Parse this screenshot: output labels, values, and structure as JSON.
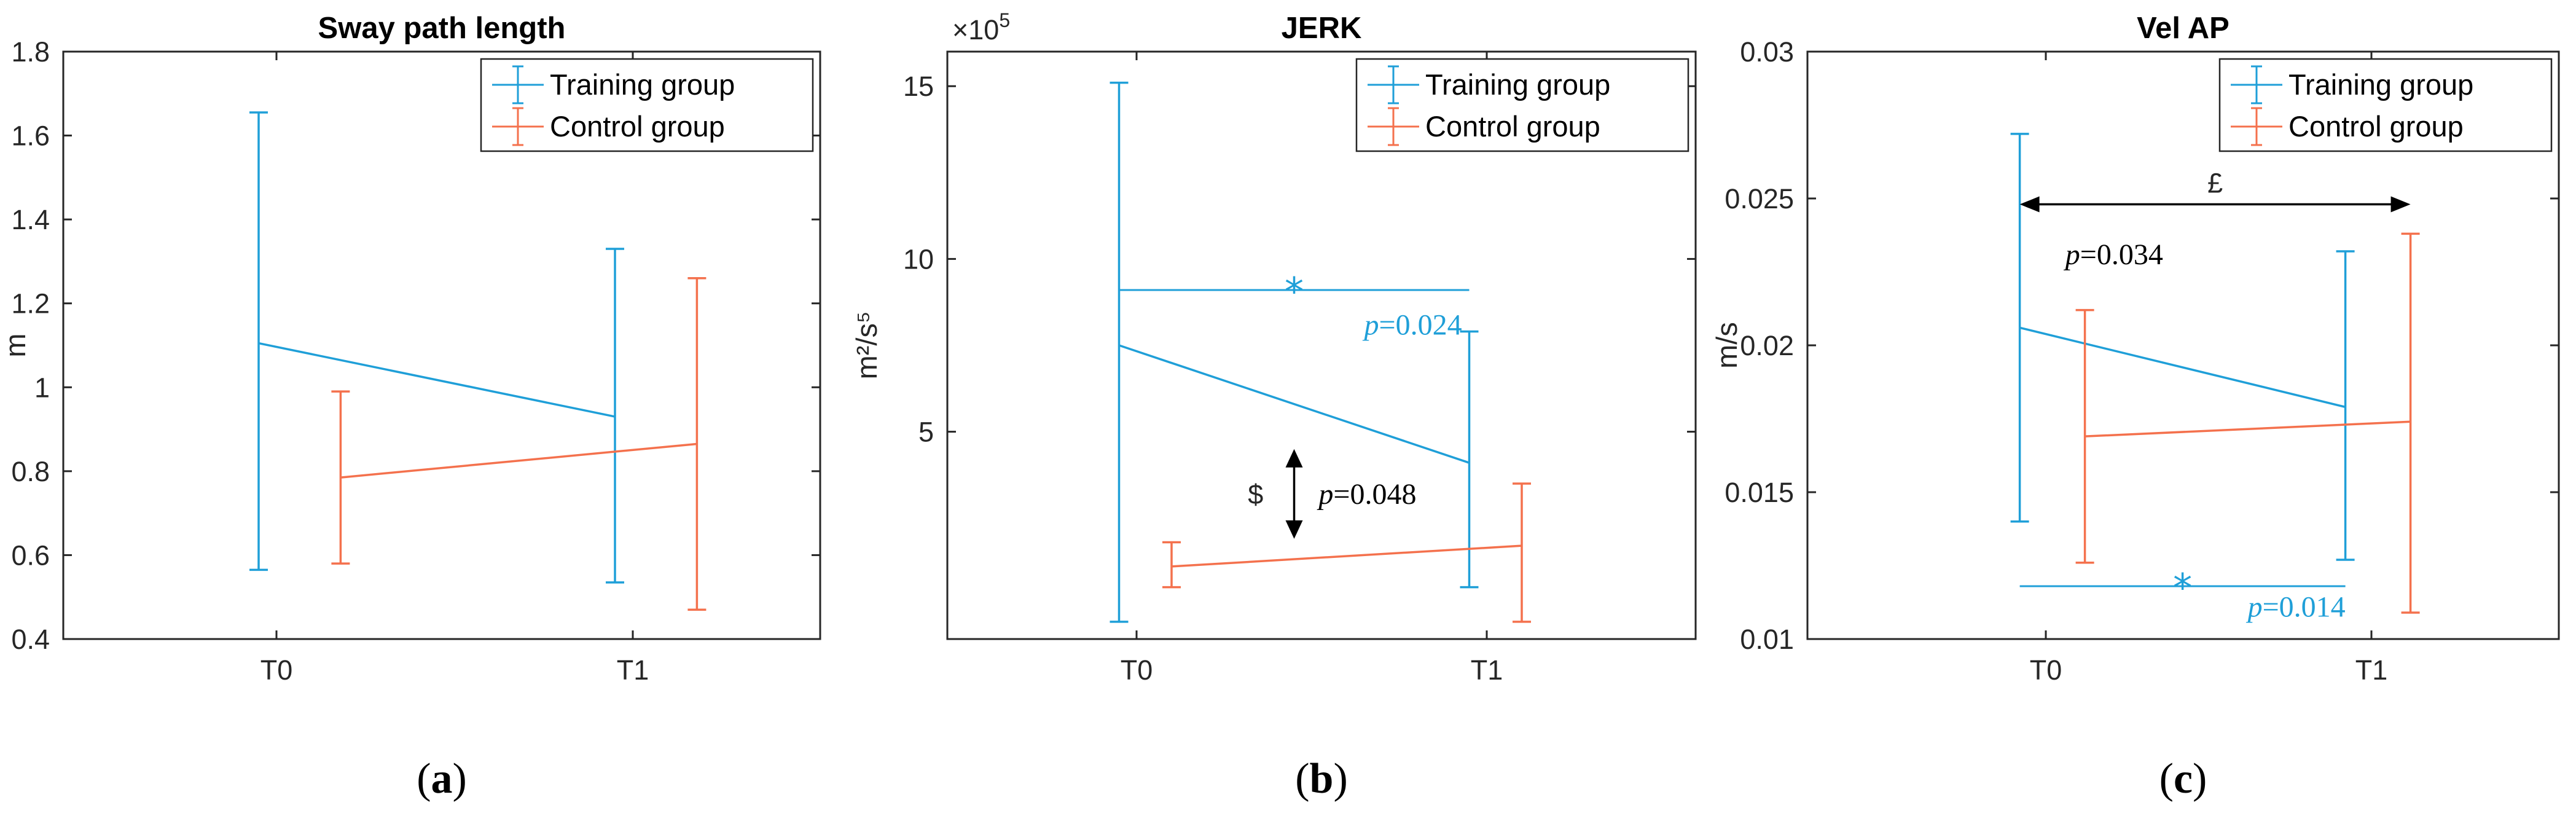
{
  "colors": {
    "training": "#1f9fd8",
    "control": "#f4714d",
    "axis": "#262626",
    "annotation": "#000000"
  },
  "chart_data": [
    {
      "type": "line",
      "title": "Sway path length",
      "ylabel": "m",
      "ylabel_html": "m",
      "caption": "(a)",
      "caption_letter": "a",
      "ylim": [
        0.4,
        1.8
      ],
      "yticks": [
        0.4,
        0.6,
        0.8,
        1,
        1.2,
        1.4,
        1.6,
        1.8
      ],
      "ytick_labels": [
        "0.4",
        "0.6",
        "0.8",
        "1",
        "1.2",
        "1.4",
        "1.6",
        "1.8"
      ],
      "exponent": null,
      "categories": [
        "T0",
        "T1"
      ],
      "legend": [
        "Training group",
        "Control group"
      ],
      "series": [
        {
          "name": "Training group",
          "x": [
            -0.05,
            0.95
          ],
          "values": [
            1.105,
            0.93
          ],
          "lower": [
            0.565,
            0.535
          ],
          "upper": [
            1.655,
            1.33
          ]
        },
        {
          "name": "Control group",
          "x": [
            0.18,
            1.18
          ],
          "values": [
            0.785,
            0.865
          ],
          "lower": [
            0.58,
            0.47
          ],
          "upper": [
            0.99,
            1.26
          ]
        }
      ],
      "annotations": []
    },
    {
      "type": "line",
      "title": "JERK",
      "ylabel": "m2/s5",
      "ylabel_html": "m²/s⁵",
      "caption": "(b)",
      "caption_letter": "b",
      "ylim": [
        -1,
        16
      ],
      "yticks": [
        5,
        10,
        15
      ],
      "ytick_labels": [
        "5",
        "10",
        "15"
      ],
      "exponent": "×10^5",
      "exponent_base": "×10",
      "exponent_power": "5",
      "categories": [
        "T0",
        "T1"
      ],
      "legend": [
        "Training group",
        "Control group"
      ],
      "series": [
        {
          "name": "Training group",
          "x": [
            -0.05,
            0.95
          ],
          "values": [
            7.5,
            4.1
          ],
          "lower": [
            -0.5,
            0.5
          ],
          "upper": [
            15.1,
            7.9
          ]
        },
        {
          "name": "Control group",
          "x": [
            0.1,
            1.1
          ],
          "values": [
            1.1,
            1.7
          ],
          "lower": [
            0.5,
            -0.5
          ],
          "upper": [
            1.8,
            3.5
          ]
        }
      ],
      "annotations": [
        {
          "kind": "hbar",
          "color": "training",
          "x0": -0.05,
          "x1": 0.95,
          "y": 9.1,
          "star_x": 0.45,
          "label": "p=0.024",
          "label_x": 0.65,
          "label_y": 8.1
        },
        {
          "kind": "varrow",
          "color": "annotation",
          "x": 0.45,
          "y0": 4.5,
          "y1": 1.9,
          "symbol": "$",
          "symbol_x": 0.34,
          "symbol_y": 3.2,
          "label": "p=0.048",
          "label_x": 0.52,
          "label_y": 3.2
        }
      ]
    },
    {
      "type": "line",
      "title": "Vel AP",
      "ylabel": "m/s",
      "ylabel_html": "m/s",
      "caption": "(c)",
      "caption_letter": "c",
      "ylim": [
        0.01,
        0.03
      ],
      "yticks": [
        0.01,
        0.015,
        0.02,
        0.025,
        0.03
      ],
      "ytick_labels": [
        "0.01",
        "0.015",
        "0.02",
        "0.025",
        "0.03"
      ],
      "exponent": null,
      "categories": [
        "T0",
        "T1"
      ],
      "legend": [
        "Training group",
        "Control group"
      ],
      "series": [
        {
          "name": "Training group",
          "x": [
            -0.08,
            0.92
          ],
          "values": [
            0.0206,
            0.0179
          ],
          "lower": [
            0.014,
            0.0127
          ],
          "upper": [
            0.0272,
            0.0232
          ]
        },
        {
          "name": "Control group",
          "x": [
            0.12,
            1.12
          ],
          "values": [
            0.0169,
            0.0174
          ],
          "lower": [
            0.0126,
            0.0109
          ],
          "upper": [
            0.0212,
            0.0238
          ]
        }
      ],
      "annotations": [
        {
          "kind": "harrow",
          "color": "annotation",
          "x0": -0.08,
          "x1": 1.12,
          "y": 0.0248,
          "symbol": "£",
          "symbol_x": 0.52,
          "symbol_y": 0.0252,
          "label": "p=0.034",
          "label_x": 0.06,
          "label_y": 0.0231
        },
        {
          "kind": "hbar",
          "color": "training",
          "x0": -0.08,
          "x1": 0.92,
          "y": 0.0118,
          "star_x": 0.42,
          "label": "p=0.014",
          "label_x": 0.62,
          "label_y": 0.0111
        }
      ]
    }
  ]
}
